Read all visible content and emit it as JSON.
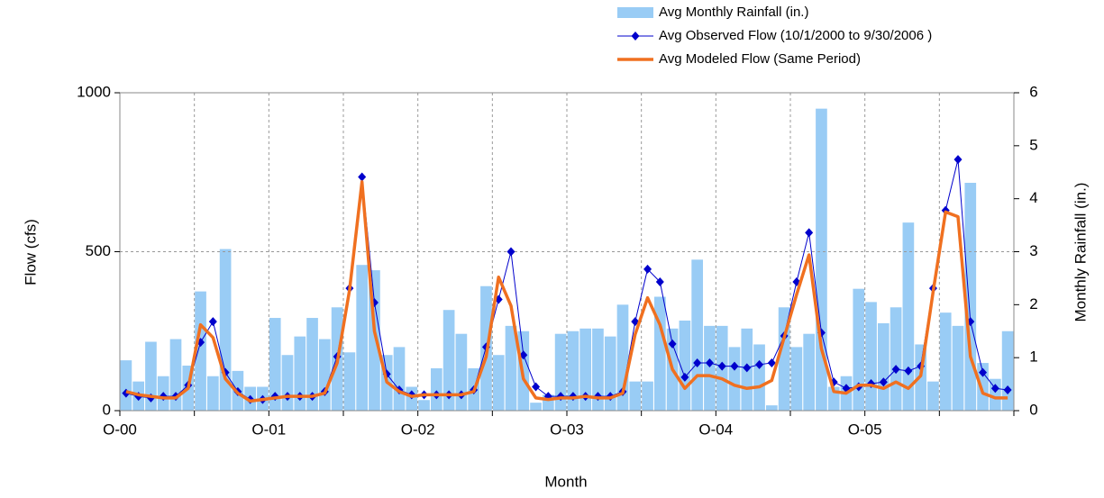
{
  "chart_data": {
    "type": "combo",
    "x_label": "Month",
    "y_label": "Flow (cfs)",
    "y2_label": "Monthly Rainfall (in.)",
    "categories": [
      "O-00",
      null,
      null,
      null,
      null,
      null,
      null,
      null,
      null,
      null,
      null,
      null,
      "O-01",
      null,
      null,
      null,
      null,
      null,
      null,
      null,
      null,
      null,
      null,
      null,
      "O-02",
      null,
      null,
      null,
      null,
      null,
      null,
      null,
      null,
      null,
      null,
      null,
      "O-03",
      null,
      null,
      null,
      null,
      null,
      null,
      null,
      null,
      null,
      null,
      null,
      "O-04",
      null,
      null,
      null,
      null,
      null,
      null,
      null,
      null,
      null,
      null,
      null,
      "O-05",
      null,
      null,
      null,
      null,
      null,
      null,
      null,
      null,
      null,
      null,
      null
    ],
    "ylim": [
      0,
      1000
    ],
    "yticks": [
      0,
      500,
      1000
    ],
    "y2lim": [
      0,
      6
    ],
    "y2ticks": [
      0,
      1,
      2,
      3,
      4,
      5,
      6
    ],
    "grid": true,
    "series": [
      {
        "name": "Avg Monthly Rainfall (in.)",
        "type": "bar",
        "axis": "y2",
        "color": "#99ccf5",
        "values": [
          0.95,
          0.55,
          1.3,
          0.65,
          1.35,
          0.85,
          2.25,
          0.65,
          3.05,
          0.75,
          0.45,
          0.45,
          1.75,
          1.05,
          1.4,
          1.75,
          1.35,
          1.95,
          1.1,
          2.75,
          2.65,
          1.05,
          1.2,
          0.45,
          0.2,
          0.8,
          1.9,
          1.45,
          0.8,
          2.35,
          1.05,
          1.6,
          1.5,
          0.15,
          0.3,
          1.45,
          1.5,
          1.55,
          1.55,
          1.4,
          2.0,
          0.55,
          0.55,
          2.15,
          1.55,
          1.7,
          2.85,
          1.6,
          1.6,
          1.2,
          1.55,
          1.25,
          0.1,
          1.95,
          1.2,
          1.45,
          5.7,
          0.45,
          0.65,
          2.3,
          2.05,
          1.65,
          1.95,
          3.55,
          1.25,
          0.55,
          1.85,
          1.6,
          4.3,
          0.9,
          0.6,
          1.5
        ]
      },
      {
        "name": "Avg Observed Flow (10/1/2000 to 9/30/2006 )",
        "type": "line",
        "markers": true,
        "color": "#0000cc",
        "values": [
          55,
          45,
          40,
          45,
          45,
          80,
          215,
          280,
          120,
          60,
          35,
          35,
          45,
          45,
          45,
          45,
          60,
          170,
          385,
          735,
          340,
          115,
          65,
          50,
          50,
          50,
          50,
          50,
          65,
          200,
          350,
          500,
          175,
          75,
          45,
          45,
          45,
          45,
          45,
          45,
          60,
          280,
          445,
          405,
          210,
          105,
          150,
          150,
          140,
          140,
          135,
          145,
          150,
          235,
          405,
          560,
          245,
          90,
          70,
          75,
          85,
          90,
          130,
          125,
          140,
          385,
          630,
          790,
          280,
          120,
          70,
          65
        ]
      },
      {
        "name": "Avg Modeled Flow (Same Period)",
        "type": "line",
        "markers": false,
        "color": "#f07020",
        "values": [
          60,
          50,
          45,
          40,
          40,
          70,
          270,
          230,
          100,
          55,
          30,
          35,
          40,
          45,
          45,
          45,
          55,
          150,
          380,
          720,
          250,
          90,
          60,
          45,
          50,
          50,
          50,
          50,
          60,
          170,
          420,
          330,
          100,
          40,
          35,
          40,
          40,
          45,
          40,
          40,
          55,
          240,
          355,
          270,
          130,
          70,
          110,
          110,
          100,
          80,
          70,
          75,
          95,
          230,
          365,
          490,
          195,
          60,
          55,
          80,
          80,
          70,
          90,
          70,
          110,
          375,
          625,
          610,
          170,
          55,
          40,
          40
        ]
      }
    ]
  }
}
